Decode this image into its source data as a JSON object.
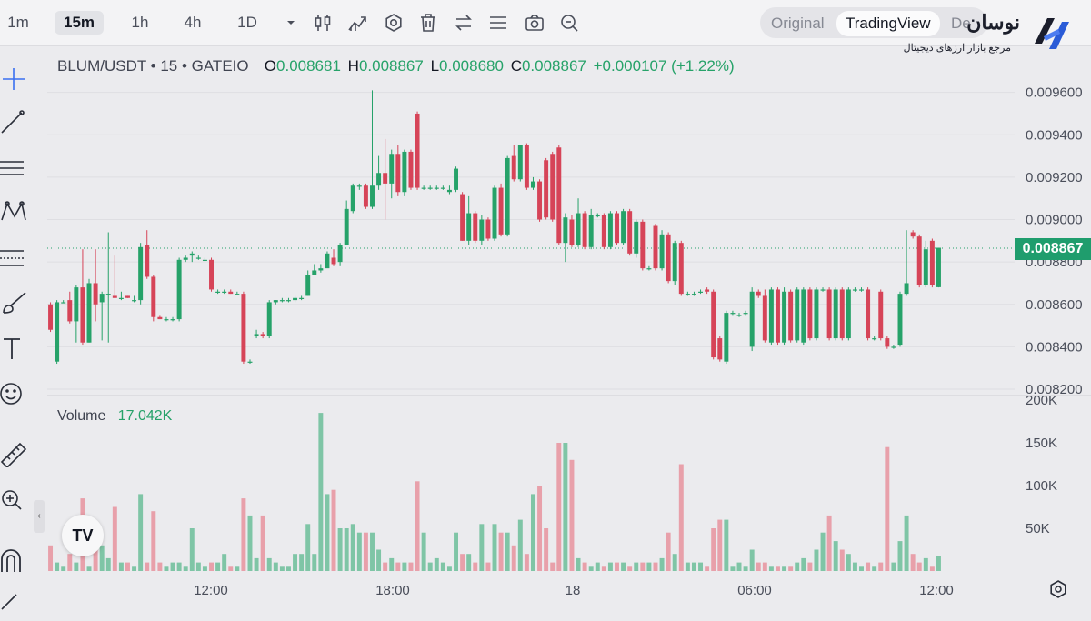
{
  "toolbar": {
    "timeframes": [
      {
        "label": "1m",
        "active": false
      },
      {
        "label": "15m",
        "active": true
      },
      {
        "label": "1h",
        "active": false
      },
      {
        "label": "4h",
        "active": false
      },
      {
        "label": "1D",
        "active": false
      }
    ],
    "view_toggle": {
      "original": "Original",
      "tradingview": "TradingView",
      "third": "De"
    }
  },
  "brand": {
    "name": "نوسان",
    "tagline": "مرجع بازار ارزهای دیجیتال",
    "accent": "#2a5bd7"
  },
  "legend": {
    "symbol": "BLUM/USDT • 15 • GATEIO",
    "o_label": "O",
    "o": "0.008681",
    "h_label": "H",
    "h": "0.008867",
    "l_label": "L",
    "l": "0.008680",
    "c_label": "C",
    "c": "0.008867",
    "change": "+0.000107 (+1.22%)"
  },
  "volume_legend": {
    "label": "Volume",
    "value": "17.042K"
  },
  "last_price": "0.008867",
  "colors": {
    "up": "#26a269",
    "down": "#d64458",
    "up_volume": "#7fc5a6",
    "down_volume": "#e8a0aa"
  },
  "chart_data": {
    "type": "candlestick",
    "price_axis": {
      "ticks": [
        "0.009600",
        "0.009400",
        "0.009200",
        "0.009000",
        "0.008800",
        "0.008600",
        "0.008400",
        "0.008200"
      ],
      "range": [
        0.00817,
        0.00965
      ]
    },
    "volume_axis": {
      "ticks": [
        "200K",
        "150K",
        "100K",
        "50K"
      ],
      "range": [
        0,
        200000
      ]
    },
    "time_axis": [
      "12:00",
      "18:00",
      "18",
      "06:00",
      "12:00"
    ],
    "candles": [
      {
        "o": 0.0086,
        "h": 0.00861,
        "l": 0.00847,
        "c": 0.00848,
        "v": 30000
      },
      {
        "o": 0.00833,
        "h": 0.00862,
        "l": 0.00832,
        "c": 0.00861,
        "v": 10000
      },
      {
        "o": 0.00861,
        "h": 0.00862,
        "l": 0.00861,
        "c": 0.00861,
        "v": 5000
      },
      {
        "o": 0.00862,
        "h": 0.00866,
        "l": 0.00851,
        "c": 0.00852,
        "v": 20000
      },
      {
        "o": 0.00852,
        "h": 0.00869,
        "l": 0.00842,
        "c": 0.00868,
        "v": 10000
      },
      {
        "o": 0.00868,
        "h": 0.00886,
        "l": 0.00841,
        "c": 0.00842,
        "v": 85000
      },
      {
        "o": 0.00842,
        "h": 0.00872,
        "l": 0.00842,
        "c": 0.0087,
        "v": 5000
      },
      {
        "o": 0.0087,
        "h": 0.00886,
        "l": 0.00852,
        "c": 0.0086,
        "v": 45000
      },
      {
        "o": 0.00861,
        "h": 0.00866,
        "l": 0.00843,
        "c": 0.00865,
        "v": 30000
      },
      {
        "o": 0.00865,
        "h": 0.00894,
        "l": 0.00842,
        "c": 0.00865,
        "v": 15000
      },
      {
        "o": 0.00864,
        "h": 0.00883,
        "l": 0.00863,
        "c": 0.00863,
        "v": 75000
      },
      {
        "o": 0.00863,
        "h": 0.00866,
        "l": 0.00862,
        "c": 0.00863,
        "v": 10000
      },
      {
        "o": 0.00864,
        "h": 0.00864,
        "l": 0.00863,
        "c": 0.00863,
        "v": 10000
      },
      {
        "o": 0.00862,
        "h": 0.00864,
        "l": 0.00861,
        "c": 0.00862,
        "v": 5000
      },
      {
        "o": 0.00862,
        "h": 0.00889,
        "l": 0.0086,
        "c": 0.00887,
        "v": 90000
      },
      {
        "o": 0.00888,
        "h": 0.00895,
        "l": 0.00872,
        "c": 0.00873,
        "v": 10000
      },
      {
        "o": 0.00873,
        "h": 0.00874,
        "l": 0.00852,
        "c": 0.00854,
        "v": 70000
      },
      {
        "o": 0.00854,
        "h": 0.00855,
        "l": 0.00853,
        "c": 0.00853,
        "v": 10000
      },
      {
        "o": 0.00853,
        "h": 0.00854,
        "l": 0.00852,
        "c": 0.00853,
        "v": 5000
      },
      {
        "o": 0.00853,
        "h": 0.00854,
        "l": 0.00852,
        "c": 0.00853,
        "v": 10000
      },
      {
        "o": 0.00853,
        "h": 0.00882,
        "l": 0.00852,
        "c": 0.00881,
        "v": 10000
      },
      {
        "o": 0.00881,
        "h": 0.00883,
        "l": 0.0088,
        "c": 0.00882,
        "v": 5000
      },
      {
        "o": 0.00883,
        "h": 0.00885,
        "l": 0.0088,
        "c": 0.00884,
        "v": 50000
      },
      {
        "o": 0.00882,
        "h": 0.00883,
        "l": 0.00881,
        "c": 0.00882,
        "v": 10000
      },
      {
        "o": 0.00881,
        "h": 0.00882,
        "l": 0.00881,
        "c": 0.00881,
        "v": 5000
      },
      {
        "o": 0.00881,
        "h": 0.00882,
        "l": 0.00866,
        "c": 0.00867,
        "v": 10000
      },
      {
        "o": 0.00866,
        "h": 0.00867,
        "l": 0.00865,
        "c": 0.00866,
        "v": 10000
      },
      {
        "o": 0.00866,
        "h": 0.00867,
        "l": 0.00865,
        "c": 0.00866,
        "v": 20000
      },
      {
        "o": 0.00866,
        "h": 0.00867,
        "l": 0.00865,
        "c": 0.00865,
        "v": 5000
      },
      {
        "o": 0.00865,
        "h": 0.00866,
        "l": 0.00865,
        "c": 0.00865,
        "v": 5000
      },
      {
        "o": 0.00865,
        "h": 0.00866,
        "l": 0.00832,
        "c": 0.00833,
        "v": 85000
      },
      {
        "o": 0.00833,
        "h": 0.00834,
        "l": 0.00832,
        "c": 0.00833,
        "v": 65000
      },
      {
        "o": 0.00845,
        "h": 0.00848,
        "l": 0.00844,
        "c": 0.00846,
        "v": 15000
      },
      {
        "o": 0.00846,
        "h": 0.00847,
        "l": 0.00844,
        "c": 0.00845,
        "v": 65000
      },
      {
        "o": 0.00845,
        "h": 0.00862,
        "l": 0.00844,
        "c": 0.00861,
        "v": 15000
      },
      {
        "o": 0.00861,
        "h": 0.00862,
        "l": 0.0086,
        "c": 0.00862,
        "v": 10000
      },
      {
        "o": 0.00862,
        "h": 0.00863,
        "l": 0.00861,
        "c": 0.00862,
        "v": 5000
      },
      {
        "o": 0.00862,
        "h": 0.00863,
        "l": 0.00861,
        "c": 0.00862,
        "v": 5000
      },
      {
        "o": 0.00862,
        "h": 0.00864,
        "l": 0.00861,
        "c": 0.00863,
        "v": 20000
      },
      {
        "o": 0.00863,
        "h": 0.00864,
        "l": 0.00862,
        "c": 0.00863,
        "v": 20000
      },
      {
        "o": 0.00864,
        "h": 0.00876,
        "l": 0.00864,
        "c": 0.00874,
        "v": 55000
      },
      {
        "o": 0.00874,
        "h": 0.00879,
        "l": 0.00874,
        "c": 0.00876,
        "v": 20000
      },
      {
        "o": 0.00876,
        "h": 0.00879,
        "l": 0.00875,
        "c": 0.00877,
        "v": 185000
      },
      {
        "o": 0.00877,
        "h": 0.00885,
        "l": 0.00878,
        "c": 0.00884,
        "v": 90000
      },
      {
        "o": 0.00882,
        "h": 0.00886,
        "l": 0.00878,
        "c": 0.00879,
        "v": 95000
      },
      {
        "o": 0.0088,
        "h": 0.00889,
        "l": 0.00878,
        "c": 0.00888,
        "v": 50000
      },
      {
        "o": 0.00888,
        "h": 0.00909,
        "l": 0.00888,
        "c": 0.00905,
        "v": 50000
      },
      {
        "o": 0.00904,
        "h": 0.00917,
        "l": 0.00903,
        "c": 0.00916,
        "v": 55000
      },
      {
        "o": 0.00916,
        "h": 0.00917,
        "l": 0.00914,
        "c": 0.00916,
        "v": 45000
      },
      {
        "o": 0.00916,
        "h": 0.00917,
        "l": 0.00905,
        "c": 0.00906,
        "v": 45000
      },
      {
        "o": 0.00906,
        "h": 0.00961,
        "l": 0.00905,
        "c": 0.00916,
        "v": 45000
      },
      {
        "o": 0.00916,
        "h": 0.0093,
        "l": 0.00914,
        "c": 0.00922,
        "v": 25000
      },
      {
        "o": 0.00922,
        "h": 0.00938,
        "l": 0.009,
        "c": 0.00917,
        "v": 10000
      },
      {
        "o": 0.00917,
        "h": 0.00933,
        "l": 0.0091,
        "c": 0.00931,
        "v": 15000
      },
      {
        "o": 0.00931,
        "h": 0.00935,
        "l": 0.00911,
        "c": 0.00913,
        "v": 10000
      },
      {
        "o": 0.00913,
        "h": 0.00933,
        "l": 0.00911,
        "c": 0.00932,
        "v": 10000
      },
      {
        "o": 0.00932,
        "h": 0.00933,
        "l": 0.00914,
        "c": 0.00915,
        "v": 10000
      },
      {
        "o": 0.0095,
        "h": 0.00951,
        "l": 0.00914,
        "c": 0.00915,
        "v": 105000
      },
      {
        "o": 0.00915,
        "h": 0.00916,
        "l": 0.00914,
        "c": 0.00915,
        "v": 45000
      },
      {
        "o": 0.00915,
        "h": 0.00916,
        "l": 0.00914,
        "c": 0.00915,
        "v": 10000
      },
      {
        "o": 0.00915,
        "h": 0.00916,
        "l": 0.00914,
        "c": 0.00915,
        "v": 15000
      },
      {
        "o": 0.00915,
        "h": 0.00916,
        "l": 0.00914,
        "c": 0.00915,
        "v": 10000
      },
      {
        "o": 0.00913,
        "h": 0.00916,
        "l": 0.00912,
        "c": 0.00914,
        "v": 5000
      },
      {
        "o": 0.00914,
        "h": 0.00925,
        "l": 0.00913,
        "c": 0.00924,
        "v": 45000
      },
      {
        "o": 0.00912,
        "h": 0.00913,
        "l": 0.0089,
        "c": 0.0089,
        "v": 20000
      },
      {
        "o": 0.0089,
        "h": 0.00911,
        "l": 0.00888,
        "c": 0.00903,
        "v": 20000
      },
      {
        "o": 0.00903,
        "h": 0.00904,
        "l": 0.00889,
        "c": 0.0089,
        "v": 10000
      },
      {
        "o": 0.0089,
        "h": 0.00902,
        "l": 0.00888,
        "c": 0.009,
        "v": 55000
      },
      {
        "o": 0.009,
        "h": 0.00901,
        "l": 0.0089,
        "c": 0.00891,
        "v": 10000
      },
      {
        "o": 0.00891,
        "h": 0.00916,
        "l": 0.0089,
        "c": 0.00915,
        "v": 55000
      },
      {
        "o": 0.00915,
        "h": 0.00917,
        "l": 0.00892,
        "c": 0.00893,
        "v": 45000
      },
      {
        "o": 0.00893,
        "h": 0.0093,
        "l": 0.00892,
        "c": 0.00929,
        "v": 45000
      },
      {
        "o": 0.0093,
        "h": 0.00935,
        "l": 0.00918,
        "c": 0.00919,
        "v": 30000
      },
      {
        "o": 0.00919,
        "h": 0.00935,
        "l": 0.00918,
        "c": 0.00935,
        "v": 60000
      },
      {
        "o": 0.00935,
        "h": 0.00936,
        "l": 0.00914,
        "c": 0.00915,
        "v": 20000
      },
      {
        "o": 0.00915,
        "h": 0.0092,
        "l": 0.00914,
        "c": 0.00918,
        "v": 90000
      },
      {
        "o": 0.00918,
        "h": 0.00919,
        "l": 0.00899,
        "c": 0.009,
        "v": 100000
      },
      {
        "o": 0.00928,
        "h": 0.00929,
        "l": 0.009,
        "c": 0.00901,
        "v": 50000
      },
      {
        "o": 0.00931,
        "h": 0.00932,
        "l": 0.00899,
        "c": 0.009,
        "v": 10000
      },
      {
        "o": 0.00934,
        "h": 0.00935,
        "l": 0.00888,
        "c": 0.00889,
        "v": 150000
      },
      {
        "o": 0.00889,
        "h": 0.00903,
        "l": 0.0088,
        "c": 0.00901,
        "v": 150000
      },
      {
        "o": 0.009,
        "h": 0.00902,
        "l": 0.00887,
        "c": 0.00888,
        "v": 130000
      },
      {
        "o": 0.00888,
        "h": 0.0091,
        "l": 0.00887,
        "c": 0.00903,
        "v": 15000
      },
      {
        "o": 0.00903,
        "h": 0.00904,
        "l": 0.00886,
        "c": 0.00887,
        "v": 10000
      },
      {
        "o": 0.00887,
        "h": 0.00905,
        "l": 0.00886,
        "c": 0.00902,
        "v": 5000
      },
      {
        "o": 0.00902,
        "h": 0.00903,
        "l": 0.00901,
        "c": 0.00902,
        "v": 10000
      },
      {
        "o": 0.00902,
        "h": 0.00903,
        "l": 0.00886,
        "c": 0.00887,
        "v": 5000
      },
      {
        "o": 0.00887,
        "h": 0.00904,
        "l": 0.00886,
        "c": 0.00903,
        "v": 10000
      },
      {
        "o": 0.00903,
        "h": 0.00904,
        "l": 0.00888,
        "c": 0.00889,
        "v": 10000
      },
      {
        "o": 0.00889,
        "h": 0.00905,
        "l": 0.00888,
        "c": 0.00904,
        "v": 10000
      },
      {
        "o": 0.00904,
        "h": 0.00905,
        "l": 0.00883,
        "c": 0.00884,
        "v": 5000
      },
      {
        "o": 0.00884,
        "h": 0.009,
        "l": 0.00882,
        "c": 0.00899,
        "v": 10000
      },
      {
        "o": 0.00899,
        "h": 0.009,
        "l": 0.00876,
        "c": 0.00877,
        "v": 10000
      },
      {
        "o": 0.00877,
        "h": 0.00878,
        "l": 0.00876,
        "c": 0.00877,
        "v": 10000
      },
      {
        "o": 0.00897,
        "h": 0.00898,
        "l": 0.00876,
        "c": 0.00877,
        "v": 10000
      },
      {
        "o": 0.00877,
        "h": 0.00895,
        "l": 0.00876,
        "c": 0.00893,
        "v": 15000
      },
      {
        "o": 0.00893,
        "h": 0.00894,
        "l": 0.0087,
        "c": 0.00871,
        "v": 45000
      },
      {
        "o": 0.00871,
        "h": 0.0089,
        "l": 0.00869,
        "c": 0.00889,
        "v": 20000
      },
      {
        "o": 0.00889,
        "h": 0.0089,
        "l": 0.00864,
        "c": 0.00865,
        "v": 125000
      },
      {
        "o": 0.00865,
        "h": 0.00866,
        "l": 0.00864,
        "c": 0.00865,
        "v": 10000
      },
      {
        "o": 0.00865,
        "h": 0.00866,
        "l": 0.00864,
        "c": 0.00865,
        "v": 10000
      },
      {
        "o": 0.00866,
        "h": 0.00867,
        "l": 0.00865,
        "c": 0.00866,
        "v": 10000
      },
      {
        "o": 0.00867,
        "h": 0.00868,
        "l": 0.00865,
        "c": 0.00866,
        "v": 5000
      },
      {
        "o": 0.00866,
        "h": 0.00867,
        "l": 0.00834,
        "c": 0.00835,
        "v": 50000
      },
      {
        "o": 0.00844,
        "h": 0.00845,
        "l": 0.00833,
        "c": 0.00834,
        "v": 60000
      },
      {
        "o": 0.00833,
        "h": 0.00857,
        "l": 0.00832,
        "c": 0.00856,
        "v": 60000
      },
      {
        "o": 0.00856,
        "h": 0.00857,
        "l": 0.00855,
        "c": 0.00856,
        "v": 5000
      },
      {
        "o": 0.00855,
        "h": 0.00856,
        "l": 0.00854,
        "c": 0.00855,
        "v": 10000
      },
      {
        "o": 0.00856,
        "h": 0.00857,
        "l": 0.00855,
        "c": 0.00856,
        "v": 5000
      },
      {
        "o": 0.0084,
        "h": 0.00868,
        "l": 0.00838,
        "c": 0.00866,
        "v": 25000
      },
      {
        "o": 0.00866,
        "h": 0.00867,
        "l": 0.00863,
        "c": 0.00864,
        "v": 10000
      },
      {
        "o": 0.00864,
        "h": 0.00867,
        "l": 0.00842,
        "c": 0.00843,
        "v": 10000
      },
      {
        "o": 0.00842,
        "h": 0.00868,
        "l": 0.00841,
        "c": 0.00867,
        "v": 5000
      },
      {
        "o": 0.00867,
        "h": 0.00868,
        "l": 0.00841,
        "c": 0.00842,
        "v": 5000
      },
      {
        "o": 0.00842,
        "h": 0.00868,
        "l": 0.00841,
        "c": 0.00866,
        "v": 5000
      },
      {
        "o": 0.00866,
        "h": 0.00867,
        "l": 0.00842,
        "c": 0.00843,
        "v": 5000
      },
      {
        "o": 0.00843,
        "h": 0.00868,
        "l": 0.00842,
        "c": 0.00867,
        "v": 10000
      },
      {
        "o": 0.00842,
        "h": 0.00868,
        "l": 0.00841,
        "c": 0.00867,
        "v": 15000
      },
      {
        "o": 0.00867,
        "h": 0.00868,
        "l": 0.00843,
        "c": 0.00844,
        "v": 10000
      },
      {
        "o": 0.00844,
        "h": 0.00868,
        "l": 0.00843,
        "c": 0.00867,
        "v": 25000
      },
      {
        "o": 0.00867,
        "h": 0.00868,
        "l": 0.00866,
        "c": 0.00867,
        "v": 45000
      },
      {
        "o": 0.00867,
        "h": 0.00868,
        "l": 0.00843,
        "c": 0.00844,
        "v": 65000
      },
      {
        "o": 0.00844,
        "h": 0.00868,
        "l": 0.00843,
        "c": 0.00867,
        "v": 35000
      },
      {
        "o": 0.00867,
        "h": 0.00868,
        "l": 0.00843,
        "c": 0.00844,
        "v": 25000
      },
      {
        "o": 0.00844,
        "h": 0.00868,
        "l": 0.00843,
        "c": 0.00867,
        "v": 20000
      },
      {
        "o": 0.00867,
        "h": 0.00868,
        "l": 0.00866,
        "c": 0.00867,
        "v": 10000
      },
      {
        "o": 0.00867,
        "h": 0.00868,
        "l": 0.00866,
        "c": 0.00867,
        "v": 5000
      },
      {
        "o": 0.00867,
        "h": 0.00868,
        "l": 0.00843,
        "c": 0.00844,
        "v": 10000
      },
      {
        "o": 0.00844,
        "h": 0.00845,
        "l": 0.00843,
        "c": 0.00844,
        "v": 5000
      },
      {
        "o": 0.00866,
        "h": 0.00867,
        "l": 0.00843,
        "c": 0.00844,
        "v": 10000
      },
      {
        "o": 0.00844,
        "h": 0.00845,
        "l": 0.00839,
        "c": 0.0084,
        "v": 145000
      },
      {
        "o": 0.0084,
        "h": 0.00841,
        "l": 0.00839,
        "c": 0.0084,
        "v": 10000
      },
      {
        "o": 0.00841,
        "h": 0.00866,
        "l": 0.0084,
        "c": 0.00865,
        "v": 35000
      },
      {
        "o": 0.00865,
        "h": 0.00895,
        "l": 0.00864,
        "c": 0.0087,
        "v": 65000
      },
      {
        "o": 0.00894,
        "h": 0.00895,
        "l": 0.00891,
        "c": 0.00892,
        "v": 20000
      },
      {
        "o": 0.00892,
        "h": 0.00893,
        "l": 0.00868,
        "c": 0.00869,
        "v": 10000
      },
      {
        "o": 0.00869,
        "h": 0.0089,
        "l": 0.00868,
        "c": 0.00886,
        "v": 15000
      },
      {
        "o": 0.0089,
        "h": 0.00891,
        "l": 0.00868,
        "c": 0.00869,
        "v": 5000
      },
      {
        "o": 0.008681,
        "h": 0.008867,
        "l": 0.00868,
        "c": 0.008867,
        "v": 17042
      }
    ]
  }
}
